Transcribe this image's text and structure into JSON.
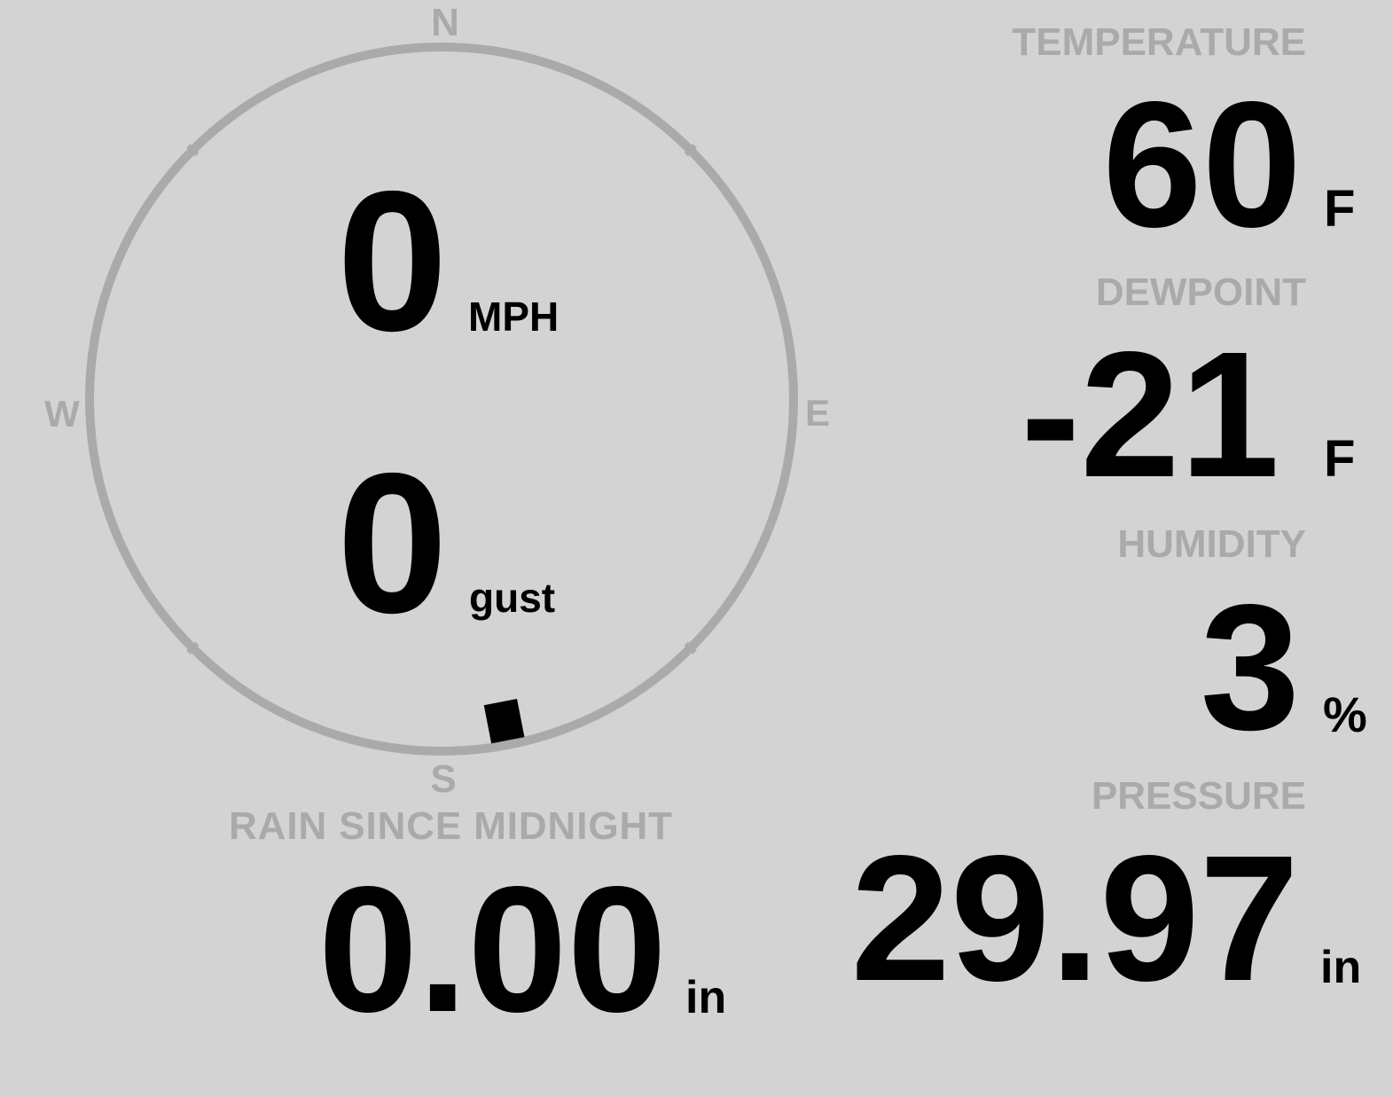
{
  "colors": {
    "background": "#d3d3d3",
    "label": "#aaaaaa",
    "value": "#000000"
  },
  "compass": {
    "north": "N",
    "south": "S",
    "east": "E",
    "west": "W",
    "wind_direction_deg": 169
  },
  "wind": {
    "speed": "0",
    "speed_unit": "MPH",
    "gust": "0",
    "gust_unit": "gust"
  },
  "temperature": {
    "label": "TEMPERATURE",
    "value": "60",
    "unit": "F"
  },
  "dewpoint": {
    "label": "DEWPOINT",
    "value": "-21",
    "unit": "F"
  },
  "humidity": {
    "label": "HUMIDITY",
    "value": "3",
    "unit": "%"
  },
  "rain": {
    "label": "RAIN SINCE MIDNIGHT",
    "value": "0.00",
    "unit": "in"
  },
  "pressure": {
    "label": "PRESSURE",
    "value": "29.97",
    "unit": "in"
  }
}
